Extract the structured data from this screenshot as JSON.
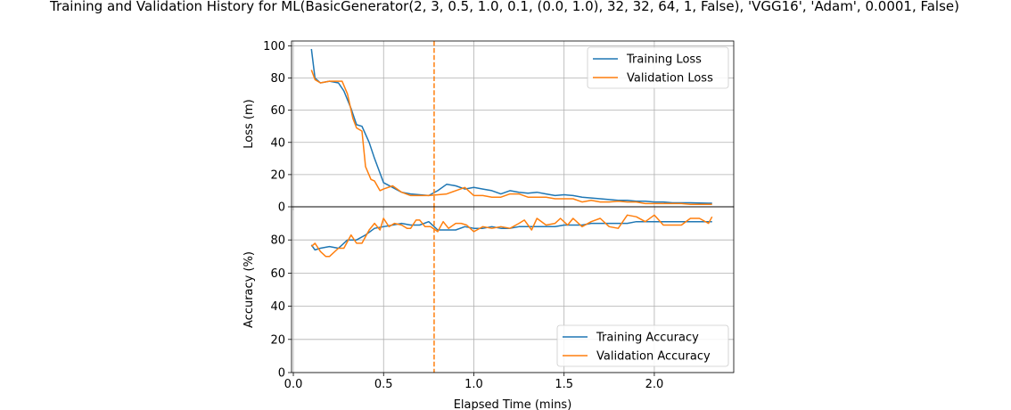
{
  "chart_data": {
    "type": "line",
    "title": "Training and Validation History for ML(BasicGenerator(2, 3, 0.5, 1.0, 0.1, (0.0, 1.0), 32, 32, 64, 1, False), 'VGG16', 'Adam', 0.0001, False)",
    "xlabel": "Elapsed Time (mins)",
    "xlim": [
      -0.01,
      2.44
    ],
    "xticks": [
      0.0,
      0.5,
      1.0,
      1.5,
      2.0
    ],
    "xtick_labels": [
      "0.0",
      "0.5",
      "1.0",
      "1.5",
      "2.0"
    ],
    "grid": true,
    "vline": {
      "x": 0.78,
      "color": "#ff7f0e",
      "style": "dashed"
    },
    "colors": {
      "training": "#1f77b4",
      "validation": "#ff7f0e"
    },
    "panels": [
      {
        "id": "loss",
        "ylabel": "Loss (m)",
        "ylim": [
          0,
          103
        ],
        "yticks": [
          0,
          20,
          40,
          60,
          80,
          100
        ],
        "ytick_labels": [
          "0",
          "20",
          "40",
          "60",
          "80",
          "100"
        ],
        "legend_position": "top-right",
        "series": [
          {
            "name": "Training Loss",
            "color": "#1f77b4",
            "x": [
              0.1,
              0.12,
              0.15,
              0.2,
              0.25,
              0.28,
              0.32,
              0.35,
              0.38,
              0.42,
              0.45,
              0.5,
              0.55,
              0.6,
              0.65,
              0.7,
              0.75,
              0.8,
              0.85,
              0.9,
              0.95,
              1.0,
              1.05,
              1.1,
              1.15,
              1.2,
              1.25,
              1.3,
              1.35,
              1.4,
              1.45,
              1.5,
              1.55,
              1.6,
              1.65,
              1.7,
              1.75,
              1.8,
              1.85,
              1.9,
              1.95,
              2.0,
              2.05,
              2.1,
              2.15,
              2.2,
              2.25,
              2.3,
              2.32
            ],
            "y": [
              98,
              80,
              77,
              78,
              77,
              72,
              61,
              51,
              50,
              40,
              30,
              15,
              12,
              9,
              8,
              7.5,
              7,
              10,
              14,
              13,
              11,
              12,
              11,
              10,
              8,
              10,
              9,
              8.5,
              9,
              8,
              7,
              7.5,
              7,
              6,
              5.5,
              5,
              4.5,
              4,
              4,
              3.5,
              3.5,
              3,
              3,
              2.5,
              2.5,
              2.5,
              2.3,
              2.2,
              2.2
            ]
          },
          {
            "name": "Validation Loss",
            "color": "#ff7f0e",
            "x": [
              0.1,
              0.12,
              0.15,
              0.2,
              0.25,
              0.27,
              0.3,
              0.33,
              0.35,
              0.38,
              0.4,
              0.43,
              0.45,
              0.48,
              0.5,
              0.55,
              0.6,
              0.65,
              0.7,
              0.75,
              0.8,
              0.85,
              0.9,
              0.95,
              1.0,
              1.05,
              1.1,
              1.15,
              1.2,
              1.25,
              1.3,
              1.35,
              1.4,
              1.45,
              1.5,
              1.55,
              1.6,
              1.65,
              1.7,
              1.75,
              1.8,
              1.85,
              1.9,
              1.95,
              2.0,
              2.05,
              2.1,
              2.15,
              2.2,
              2.25,
              2.3,
              2.32
            ],
            "y": [
              85,
              79,
              77,
              78,
              78,
              78,
              70,
              55,
              49,
              47,
              25,
              17,
              16,
              10,
              11,
              13,
              9,
              7,
              7,
              7,
              7.5,
              8,
              10,
              12,
              7,
              7,
              6,
              6,
              8,
              8,
              6,
              6,
              6,
              5,
              5,
              5,
              3,
              4,
              3,
              3,
              3.5,
              3,
              3,
              2,
              2,
              2,
              2,
              2,
              1.5,
              1.5,
              1.5,
              1.5
            ]
          }
        ]
      },
      {
        "id": "accuracy",
        "ylabel": "Accuracy (%)",
        "ylim": [
          0,
          100
        ],
        "yticks": [
          0,
          20,
          40,
          60,
          80
        ],
        "ytick_labels": [
          "0",
          "20",
          "40",
          "60",
          "80"
        ],
        "legend_position": "bottom-right",
        "series": [
          {
            "name": "Training Accuracy",
            "color": "#1f77b4",
            "x": [
              0.1,
              0.12,
              0.15,
              0.2,
              0.25,
              0.3,
              0.35,
              0.4,
              0.45,
              0.5,
              0.55,
              0.6,
              0.65,
              0.7,
              0.75,
              0.8,
              0.85,
              0.9,
              0.95,
              1.0,
              1.05,
              1.1,
              1.15,
              1.2,
              1.25,
              1.3,
              1.35,
              1.4,
              1.45,
              1.5,
              1.55,
              1.6,
              1.65,
              1.7,
              1.75,
              1.8,
              1.85,
              1.9,
              1.95,
              2.0,
              2.05,
              2.1,
              2.15,
              2.2,
              2.25,
              2.3,
              2.32
            ],
            "y": [
              77,
              74,
              75,
              76,
              75,
              80,
              80,
              83,
              87,
              88,
              89,
              90,
              89,
              89,
              91,
              86,
              86,
              86,
              88,
              87,
              87,
              88,
              87,
              87,
              88,
              88,
              88,
              88,
              88,
              89,
              89,
              89,
              90,
              90,
              90,
              90,
              90,
              91,
              91,
              91,
              91,
              91,
              91,
              91,
              91,
              91,
              91
            ]
          },
          {
            "name": "Validation Accuracy",
            "color": "#ff7f0e",
            "x": [
              0.1,
              0.12,
              0.15,
              0.18,
              0.2,
              0.25,
              0.28,
              0.32,
              0.35,
              0.38,
              0.42,
              0.45,
              0.48,
              0.5,
              0.53,
              0.56,
              0.6,
              0.63,
              0.65,
              0.68,
              0.7,
              0.73,
              0.76,
              0.8,
              0.83,
              0.86,
              0.9,
              0.93,
              0.96,
              1.0,
              1.05,
              1.1,
              1.15,
              1.2,
              1.25,
              1.28,
              1.32,
              1.35,
              1.4,
              1.45,
              1.48,
              1.52,
              1.55,
              1.6,
              1.65,
              1.7,
              1.75,
              1.8,
              1.85,
              1.9,
              1.95,
              2.0,
              2.05,
              2.1,
              2.15,
              2.2,
              2.25,
              2.3,
              2.32
            ],
            "y": [
              76,
              78,
              73,
              70,
              70,
              75,
              75,
              83,
              78,
              78,
              86,
              90,
              86,
              93,
              88,
              90,
              89,
              87,
              87,
              92,
              92,
              88,
              88,
              85,
              91,
              87,
              90,
              90,
              89,
              85,
              88,
              87,
              88,
              87,
              90,
              92,
              86,
              93,
              89,
              90,
              93,
              89,
              93,
              88,
              91,
              93,
              88,
              87,
              95,
              94,
              91,
              95,
              89,
              89,
              89,
              93,
              93,
              90,
              94
            ]
          }
        ]
      }
    ]
  }
}
